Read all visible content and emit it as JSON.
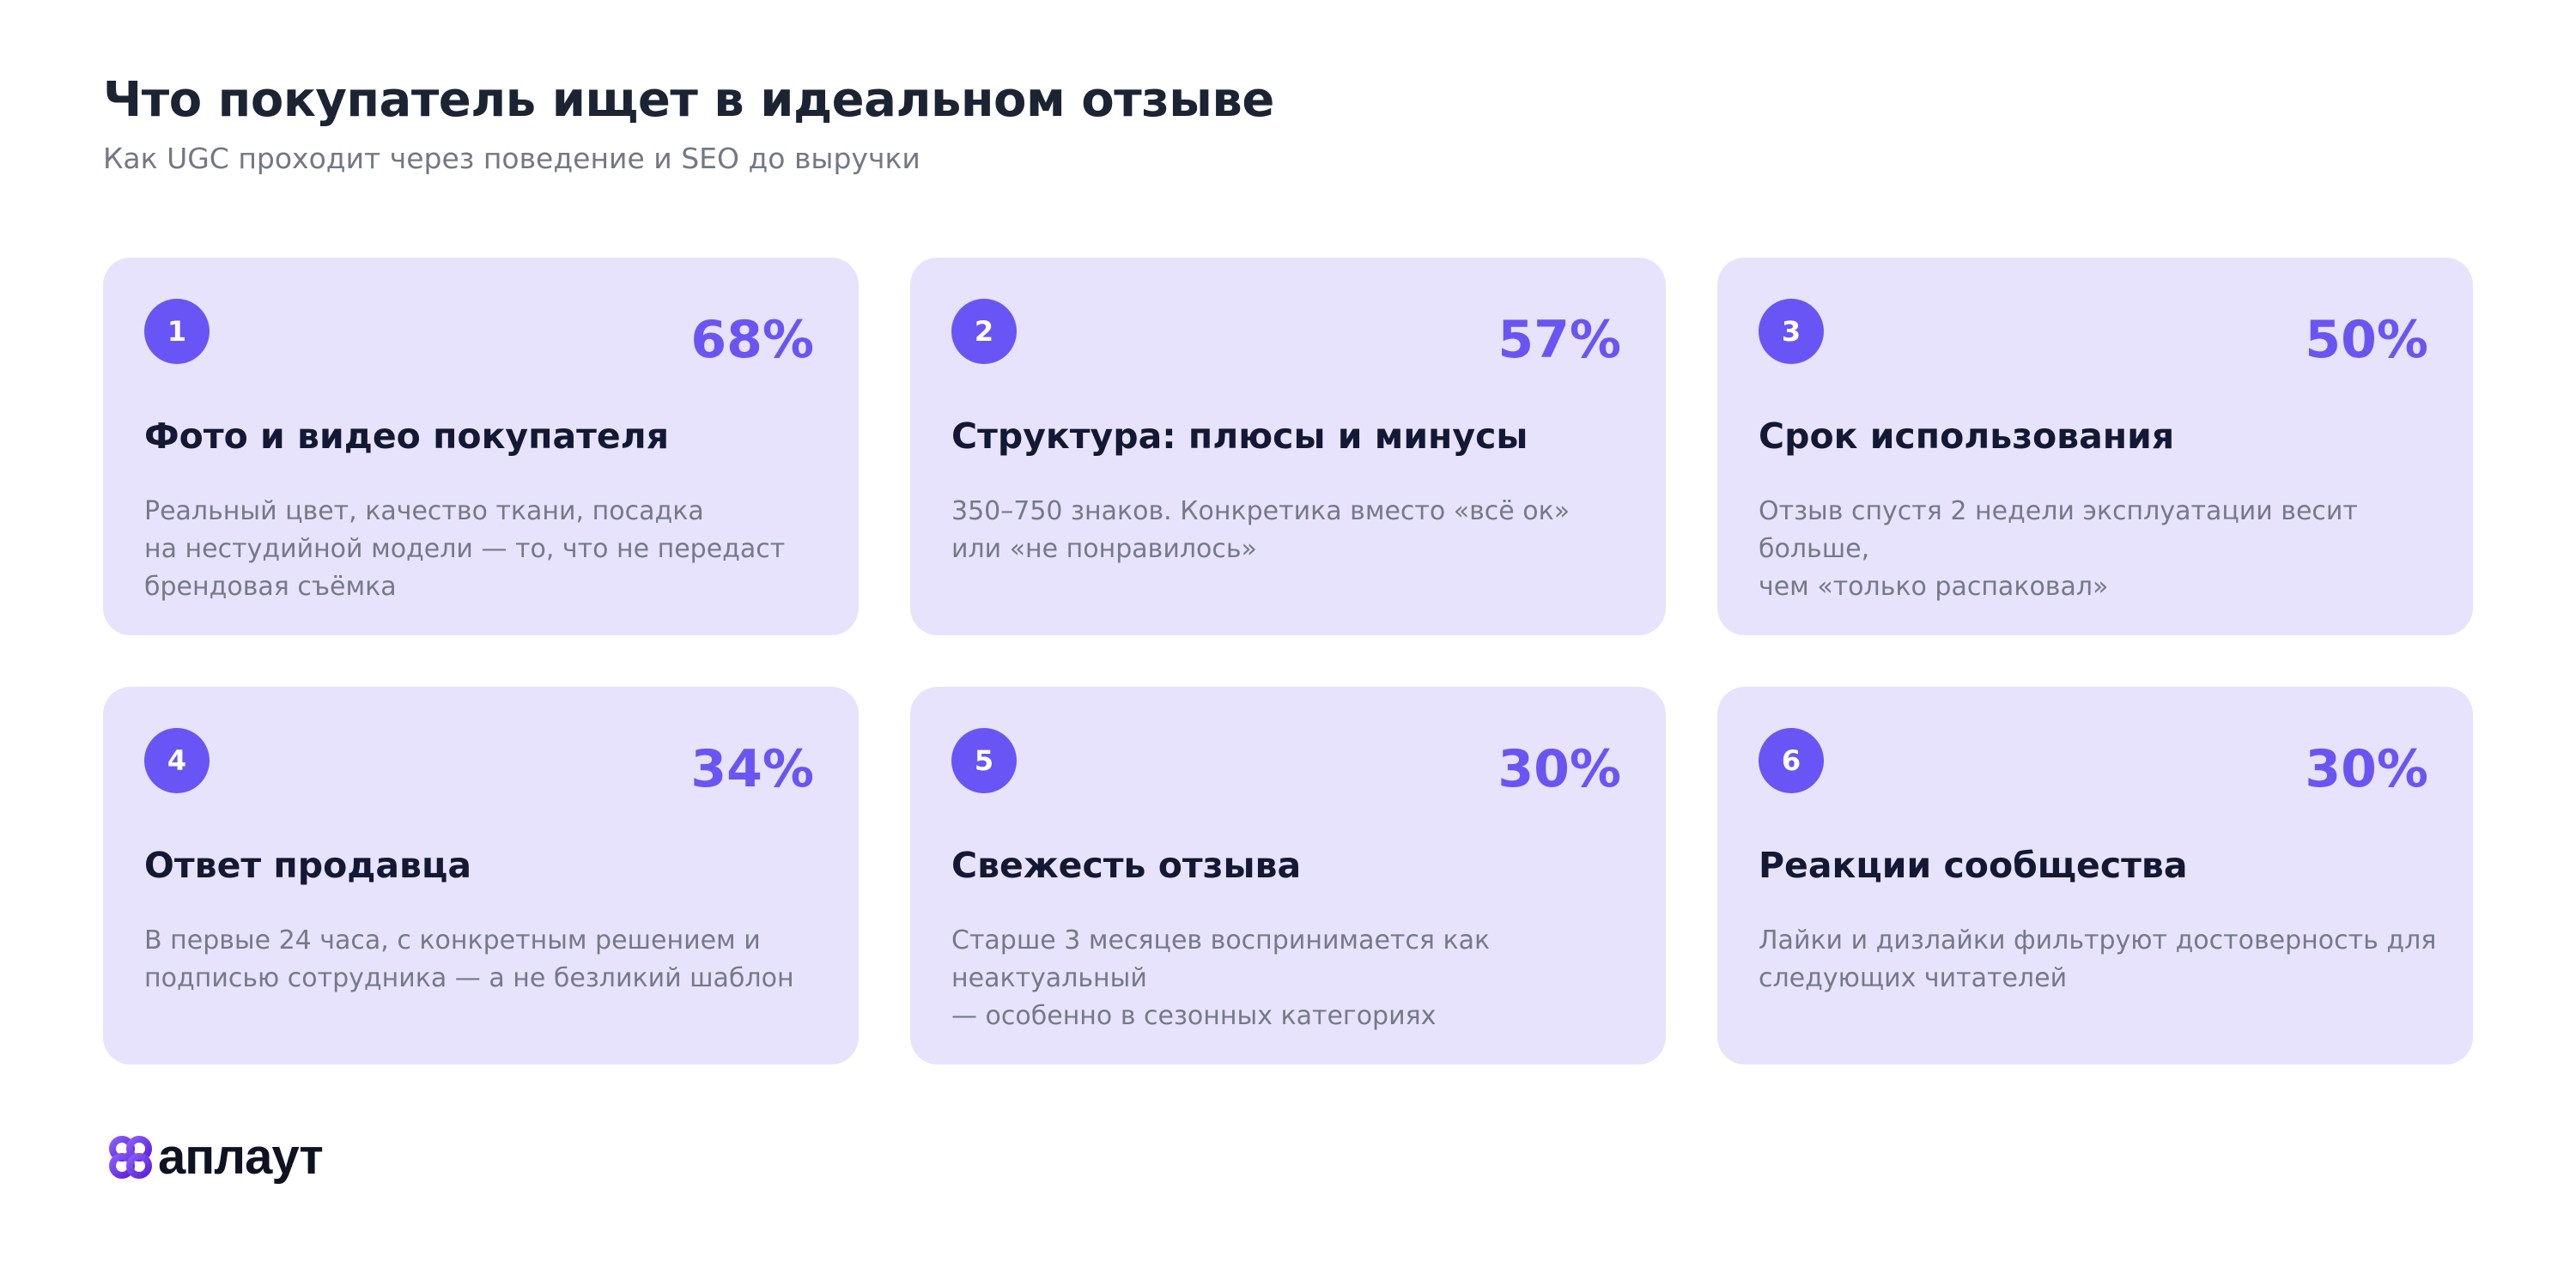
{
  "header": {
    "title": "Что покупатель ищет в идеальном отзыве",
    "subtitle": "Как UGC проходит через поведение и SEO до выручки"
  },
  "cards": [
    {
      "number": "1",
      "percent": "68%",
      "title": "Фото и видео покупателя",
      "description": "Реальный цвет, качество ткани, посадка\nна нестудийной модели — то, что не передаст\nбрендовая съёмка"
    },
    {
      "number": "2",
      "percent": "57%",
      "title": "Структура: плюсы и минусы",
      "description": "350–750 знаков. Конкретика вместо «всё ок»\nили «не понравилось»"
    },
    {
      "number": "3",
      "percent": "50%",
      "title": "Срок использования",
      "description": "Отзыв спустя 2 недели эксплуатации весит больше,\nчем «только распаковал»"
    },
    {
      "number": "4",
      "percent": "34%",
      "title": "Ответ продавца",
      "description": "В первые 24 часа, с конкретным решением и\nподписью сотрудника — а не безликий шаблон"
    },
    {
      "number": "5",
      "percent": "30%",
      "title": "Свежесть отзыва",
      "description": "Старше 3 месяцев воспринимается как неактуальный\n— особенно в сезонных категориях"
    },
    {
      "number": "6",
      "percent": "30%",
      "title": "Реакции сообщества",
      "description": "Лайки и дизлайки фильтруют достоверность для\nследующих читателей"
    }
  ],
  "logo": {
    "text": "аплаут",
    "icon": "aplaut-logo-icon"
  },
  "colors": {
    "card_background": "#e7e3fd",
    "accent": "#6a55f2",
    "title": "#1c2433",
    "muted_text": "#767987"
  }
}
